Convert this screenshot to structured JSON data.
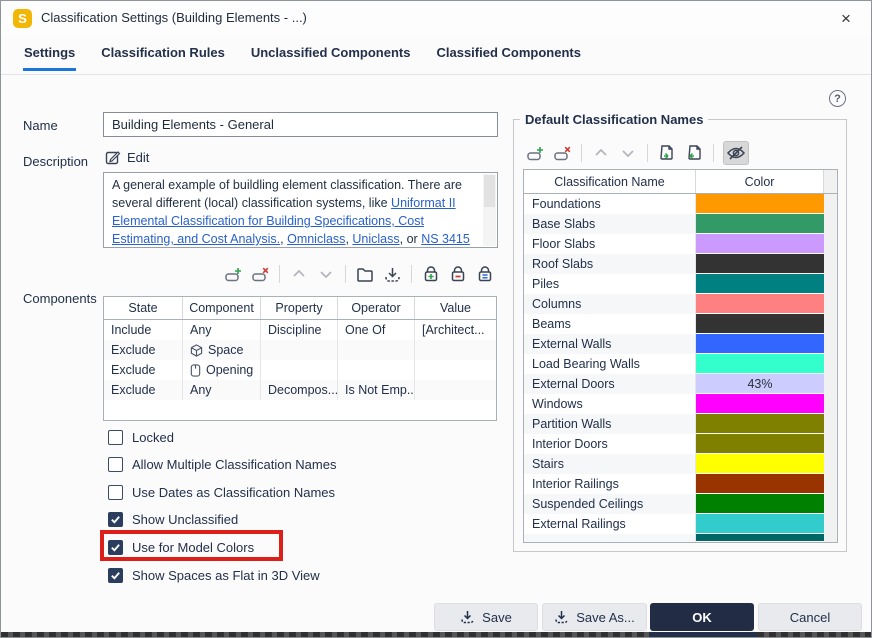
{
  "window": {
    "title": "Classification Settings (Building Elements - ...)",
    "close_glyph": "×",
    "logo_glyph": "S"
  },
  "tabs": [
    {
      "label": "Settings",
      "active": true
    },
    {
      "label": "Classification Rules",
      "active": false
    },
    {
      "label": "Unclassified Components",
      "active": false
    },
    {
      "label": "Classified Components",
      "active": false
    }
  ],
  "colors": {
    "accent": "#1b76d8",
    "highlight_box": "#dd1f1a",
    "ok_bg": "#222d45",
    "link": "#2961c9"
  },
  "left": {
    "name_label": "Name",
    "name_value": "Building Elements - General",
    "description_label": "Description",
    "edit_label": "Edit",
    "description_segments": [
      {
        "text": "A general example of buildling element classification. There are several different (local) classification systems, like "
      },
      {
        "text": "Uniformat II Elemental Classification for Building Specifications, Cost Estimating, and Cost Analysis.",
        "link": true
      },
      {
        "text": ", "
      },
      {
        "text": "Omniclass",
        "link": true
      },
      {
        "text": ", "
      },
      {
        "text": "Uniclass",
        "link": true
      },
      {
        "text": ", or "
      },
      {
        "text": "NS 3415",
        "link": true
      }
    ],
    "components_label": "Components",
    "components_toolbar_icons": [
      "add-row-icon",
      "delete-row-icon",
      "move-up-icon",
      "move-down-icon",
      "open-folder-icon",
      "import-icon",
      "lock-add-icon",
      "lock-remove-icon",
      "lock-list-icon"
    ],
    "components_table": {
      "headers": [
        "State",
        "Component",
        "Property",
        "Operator",
        "Value"
      ],
      "rows": [
        {
          "state": "Include",
          "component": "Any",
          "component_icon": "",
          "property": "Discipline",
          "operator": "One Of",
          "value": "[Architect..."
        },
        {
          "state": "Exclude",
          "component": "Space",
          "component_icon": "cube",
          "property": "",
          "operator": "",
          "value": ""
        },
        {
          "state": "Exclude",
          "component": "Opening",
          "component_icon": "opening",
          "property": "",
          "operator": "",
          "value": ""
        },
        {
          "state": "Exclude",
          "component": "Any",
          "component_icon": "",
          "property": "Decompos...",
          "operator": "Is Not Emp...",
          "value": ""
        }
      ]
    },
    "checkboxes": [
      {
        "label": "Locked",
        "checked": false,
        "highlighted": false
      },
      {
        "label": "Allow Multiple Classification Names",
        "checked": false,
        "highlighted": false
      },
      {
        "label": "Use Dates as Classification Names",
        "checked": false,
        "highlighted": false
      },
      {
        "label": "Show Unclassified",
        "checked": true,
        "highlighted": false
      },
      {
        "label": "Use for Model Colors",
        "checked": true,
        "highlighted": true
      },
      {
        "label": "Show Spaces as Flat in 3D View",
        "checked": true,
        "highlighted": false
      }
    ]
  },
  "right": {
    "help_glyph": "?",
    "group_title": "Default Classification Names",
    "toolbar_icons": [
      "add-row-icon",
      "delete-row-icon",
      "move-up-icon",
      "move-down-icon",
      "export-file-icon",
      "import-file-icon",
      "hide-colors-icon"
    ],
    "table": {
      "headers": [
        "Classification Name",
        "Color"
      ],
      "rows": [
        {
          "name": "Foundations",
          "color": "#FF9900",
          "color_label": ""
        },
        {
          "name": "Base Slabs",
          "color": "#339966",
          "color_label": ""
        },
        {
          "name": "Floor Slabs",
          "color": "#CC99FF",
          "color_label": ""
        },
        {
          "name": "Roof Slabs",
          "color": "#333333",
          "color_label": ""
        },
        {
          "name": "Piles",
          "color": "#008080",
          "color_label": ""
        },
        {
          "name": "Columns",
          "color": "#FF8080",
          "color_label": ""
        },
        {
          "name": "Beams",
          "color": "#333333",
          "color_label": ""
        },
        {
          "name": "External Walls",
          "color": "#3366FF",
          "color_label": ""
        },
        {
          "name": "Load Bearing Walls",
          "color": "#33FFCC",
          "color_label": ""
        },
        {
          "name": "External Doors",
          "color": "#CCCCFF",
          "color_label": "43%"
        },
        {
          "name": "Windows",
          "color": "#FF00FF",
          "color_label": ""
        },
        {
          "name": "Partition Walls",
          "color": "#808000",
          "color_label": ""
        },
        {
          "name": "Interior Doors",
          "color": "#808000",
          "color_label": ""
        },
        {
          "name": "Stairs",
          "color": "#FFFF00",
          "color_label": ""
        },
        {
          "name": "Interior Railings",
          "color": "#993300",
          "color_label": ""
        },
        {
          "name": "Suspended Ceilings",
          "color": "#008000",
          "color_label": ""
        },
        {
          "name": "External Railings",
          "color": "#33CCCC",
          "color_label": ""
        },
        {
          "name": "",
          "color": "#006666",
          "color_label": "",
          "partial": true
        }
      ]
    }
  },
  "footer": {
    "save": "Save",
    "save_as": "Save As...",
    "ok": "OK",
    "cancel": "Cancel"
  }
}
